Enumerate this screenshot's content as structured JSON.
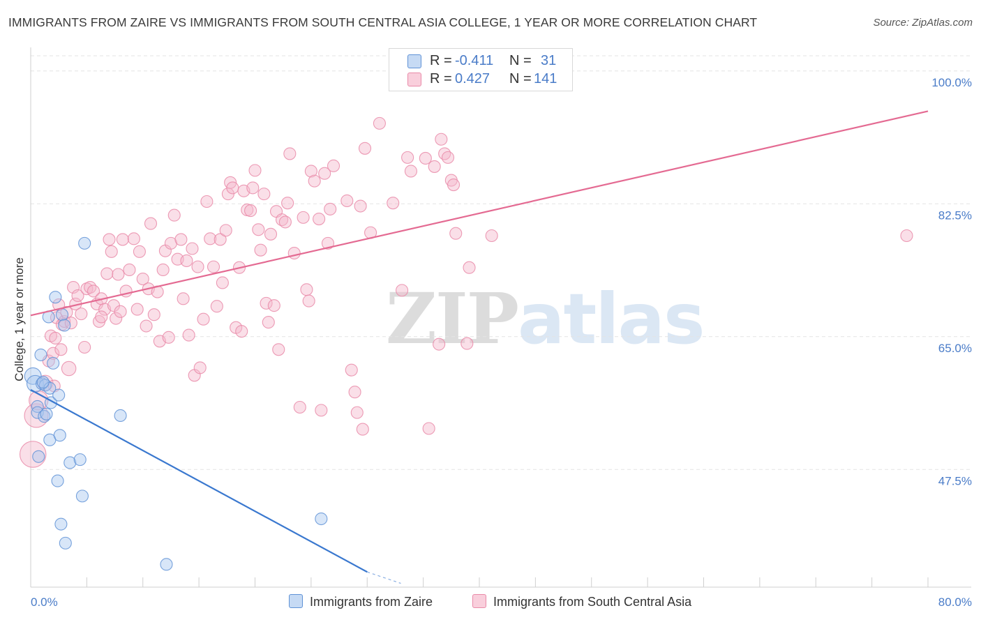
{
  "title": "IMMIGRANTS FROM ZAIRE VS IMMIGRANTS FROM SOUTH CENTRAL ASIA COLLEGE, 1 YEAR OR MORE CORRELATION CHART",
  "source": "Source: ZipAtlas.com",
  "watermark": {
    "zip": "ZIP",
    "atlas": "atlas"
  },
  "colors": {
    "blue_fill": "#a9c8ef",
    "blue_stroke": "#5f92d6",
    "blue_line": "#3a78cf",
    "pink_fill": "#f5b8cb",
    "pink_stroke": "#e98aa8",
    "pink_line": "#e46a92",
    "axis_text": "#4a7cc8",
    "grid": "#e3e3e3"
  },
  "legend": {
    "rows": [
      {
        "series": "Immigrants from Zaire",
        "r_label": "R =",
        "r_value": "-0.411",
        "n_label": "N =",
        "n_value": "31"
      },
      {
        "series": "Immigrants from South Central Asia",
        "r_label": "R =",
        "r_value": "0.427",
        "n_label": "N =",
        "n_value": "141"
      }
    ]
  },
  "bottom_legend": {
    "zaire": "Immigrants from Zaire",
    "sca": "Immigrants from South Central Asia"
  },
  "chart_data": {
    "type": "scatter",
    "title": "IMMIGRANTS FROM ZAIRE VS IMMIGRANTS FROM SOUTH CENTRAL ASIA COLLEGE, 1 YEAR OR MORE CORRELATION CHART",
    "xlabel": "",
    "ylabel": "College, 1 year or more",
    "xlim": [
      0,
      80
    ],
    "ylim": [
      32,
      102
    ],
    "x_tick_labels": [
      "0.0%",
      "80.0%"
    ],
    "y_ticks": [
      {
        "value": 100,
        "label": "100.0%"
      },
      {
        "value": 82.5,
        "label": "82.5%"
      },
      {
        "value": 65,
        "label": "65.0%"
      },
      {
        "value": 47.5,
        "label": "47.5%"
      }
    ],
    "grid": true,
    "legend_position": "top-center",
    "series": [
      {
        "name": "Immigrants from Zaire",
        "color": "blue",
        "r": -0.411,
        "n": 31,
        "trend": {
          "x": [
            0,
            30
          ],
          "y": [
            58.0,
            34.0
          ],
          "dashed_extension_to": [
            33,
            32.5
          ]
        },
        "points": [
          [
            0.2,
            59.8,
            1.4
          ],
          [
            0.4,
            58.8,
            1.4
          ],
          [
            0.6,
            55.8,
            1.0
          ],
          [
            0.6,
            55.0,
            1.0
          ],
          [
            0.7,
            49.2,
            1.0
          ],
          [
            0.9,
            62.6,
            1.0
          ],
          [
            1.0,
            58.8,
            1.0
          ],
          [
            1.2,
            54.5,
            1.0
          ],
          [
            1.3,
            58.6,
            1.0
          ],
          [
            1.4,
            54.8,
            1.0
          ],
          [
            1.6,
            67.6,
            1.0
          ],
          [
            1.7,
            51.4,
            1.0
          ],
          [
            1.7,
            58.2,
            1.0
          ],
          [
            1.8,
            56.3,
            1.0
          ],
          [
            2.0,
            61.5,
            1.0
          ],
          [
            2.2,
            70.2,
            1.0
          ],
          [
            2.4,
            46.0,
            1.0
          ],
          [
            2.5,
            57.3,
            1.0
          ],
          [
            2.6,
            52.0,
            1.0
          ],
          [
            2.7,
            40.3,
            1.0
          ],
          [
            2.8,
            67.9,
            1.0
          ],
          [
            3.0,
            66.5,
            1.0
          ],
          [
            3.1,
            37.8,
            1.0
          ],
          [
            3.5,
            48.4,
            1.0
          ],
          [
            4.4,
            48.8,
            1.0
          ],
          [
            4.6,
            44.0,
            1.0
          ],
          [
            4.8,
            77.3,
            1.0
          ],
          [
            8.0,
            54.6,
            1.0
          ],
          [
            12.1,
            35.0,
            1.0
          ],
          [
            25.9,
            41.0,
            1.0
          ],
          [
            1.1,
            59.0,
            1.0
          ]
        ]
      },
      {
        "name": "Immigrants from South Central Asia",
        "color": "pink",
        "r": 0.427,
        "n": 141,
        "trend": {
          "x": [
            0,
            80
          ],
          "y": [
            67.8,
            94.7
          ]
        },
        "points": [
          [
            0.2,
            49.5,
            2.2
          ],
          [
            0.5,
            54.6,
            2.0
          ],
          [
            0.7,
            56.6,
            1.6
          ],
          [
            1.3,
            58.9,
            1.3
          ],
          [
            1.6,
            61.8,
            1.0
          ],
          [
            1.8,
            65.1,
            1.0
          ],
          [
            2.0,
            62.8,
            1.0
          ],
          [
            2.1,
            58.5,
            1.0
          ],
          [
            2.2,
            64.8,
            1.0
          ],
          [
            2.3,
            67.5,
            1.0
          ],
          [
            2.5,
            69.2,
            1.0
          ],
          [
            2.7,
            63.3,
            1.0
          ],
          [
            2.8,
            66.6,
            1.0
          ],
          [
            3.0,
            67.0,
            1.0
          ],
          [
            3.2,
            68.2,
            1.0
          ],
          [
            3.4,
            60.8,
            1.2
          ],
          [
            3.6,
            66.8,
            1.0
          ],
          [
            3.8,
            71.5,
            1.0
          ],
          [
            4.0,
            69.3,
            1.0
          ],
          [
            4.2,
            70.4,
            1.0
          ],
          [
            4.5,
            68.0,
            1.0
          ],
          [
            4.8,
            63.6,
            1.0
          ],
          [
            5.0,
            71.3,
            1.0
          ],
          [
            5.3,
            71.5,
            1.0
          ],
          [
            5.6,
            71.0,
            1.0
          ],
          [
            5.9,
            69.3,
            1.0
          ],
          [
            6.1,
            67.0,
            1.0
          ],
          [
            6.3,
            70.0,
            1.0
          ],
          [
            6.6,
            68.6,
            1.0
          ],
          [
            6.8,
            73.3,
            1.0
          ],
          [
            7.0,
            77.8,
            1.0
          ],
          [
            7.2,
            76.2,
            1.0
          ],
          [
            7.4,
            69.1,
            1.0
          ],
          [
            7.6,
            67.4,
            1.0
          ],
          [
            7.8,
            73.2,
            1.0
          ],
          [
            8.0,
            68.3,
            1.0
          ],
          [
            8.2,
            77.8,
            1.0
          ],
          [
            8.5,
            71.0,
            1.0
          ],
          [
            8.8,
            73.8,
            1.0
          ],
          [
            9.2,
            77.9,
            1.0
          ],
          [
            9.5,
            68.6,
            1.0
          ],
          [
            9.7,
            76.2,
            1.0
          ],
          [
            10.0,
            72.6,
            1.0
          ],
          [
            10.3,
            66.4,
            1.0
          ],
          [
            10.5,
            71.3,
            1.0
          ],
          [
            10.7,
            79.9,
            1.0
          ],
          [
            11.0,
            67.9,
            1.0
          ],
          [
            11.3,
            70.9,
            1.0
          ],
          [
            11.5,
            64.4,
            1.0
          ],
          [
            11.8,
            73.8,
            1.0
          ],
          [
            12.0,
            76.3,
            1.0
          ],
          [
            12.3,
            64.9,
            1.0
          ],
          [
            12.5,
            77.3,
            1.0
          ],
          [
            12.8,
            81.0,
            1.0
          ],
          [
            13.1,
            75.2,
            1.0
          ],
          [
            13.4,
            77.8,
            1.0
          ],
          [
            13.6,
            70.0,
            1.0
          ],
          [
            13.9,
            75.0,
            1.0
          ],
          [
            14.1,
            65.2,
            1.0
          ],
          [
            14.4,
            76.6,
            1.0
          ],
          [
            14.6,
            59.9,
            1.0
          ],
          [
            14.9,
            74.2,
            1.0
          ],
          [
            15.1,
            60.9,
            1.0
          ],
          [
            15.4,
            67.3,
            1.0
          ],
          [
            15.7,
            82.8,
            1.0
          ],
          [
            16.0,
            77.9,
            1.0
          ],
          [
            16.3,
            74.2,
            1.0
          ],
          [
            16.6,
            69.0,
            1.0
          ],
          [
            16.9,
            77.8,
            1.0
          ],
          [
            17.1,
            72.1,
            1.0
          ],
          [
            17.4,
            79.0,
            1.0
          ],
          [
            17.6,
            83.8,
            1.0
          ],
          [
            17.8,
            85.3,
            1.0
          ],
          [
            18.0,
            84.6,
            1.0
          ],
          [
            18.3,
            66.2,
            1.0
          ],
          [
            18.6,
            74.1,
            1.0
          ],
          [
            18.8,
            65.7,
            1.0
          ],
          [
            19.0,
            84.2,
            1.0
          ],
          [
            19.3,
            81.7,
            1.0
          ],
          [
            19.6,
            81.6,
            1.0
          ],
          [
            19.8,
            84.6,
            1.0
          ],
          [
            20.0,
            86.9,
            1.0
          ],
          [
            20.3,
            79.1,
            1.0
          ],
          [
            20.5,
            76.4,
            1.0
          ],
          [
            20.8,
            83.8,
            1.0
          ],
          [
            21.0,
            69.4,
            1.0
          ],
          [
            21.2,
            66.9,
            1.0
          ],
          [
            21.4,
            78.5,
            1.0
          ],
          [
            21.7,
            69.1,
            1.0
          ],
          [
            21.9,
            81.5,
            1.0
          ],
          [
            22.1,
            63.3,
            1.0
          ],
          [
            22.4,
            80.4,
            1.0
          ],
          [
            22.7,
            80.1,
            1.0
          ],
          [
            22.9,
            82.6,
            1.0
          ],
          [
            23.1,
            89.1,
            1.0
          ],
          [
            23.5,
            76.0,
            1.0
          ],
          [
            24.0,
            55.7,
            1.0
          ],
          [
            24.3,
            80.7,
            1.0
          ],
          [
            24.6,
            71.2,
            1.0
          ],
          [
            24.8,
            69.7,
            1.0
          ],
          [
            25.0,
            86.8,
            1.0
          ],
          [
            25.3,
            85.5,
            1.0
          ],
          [
            25.7,
            80.5,
            1.0
          ],
          [
            25.9,
            55.3,
            1.0
          ],
          [
            26.2,
            86.5,
            1.0
          ],
          [
            26.5,
            77.3,
            1.0
          ],
          [
            26.7,
            81.8,
            1.0
          ],
          [
            27.0,
            87.5,
            1.0
          ],
          [
            28.2,
            82.9,
            1.0
          ],
          [
            28.6,
            60.6,
            1.0
          ],
          [
            28.9,
            57.7,
            1.0
          ],
          [
            29.1,
            55.0,
            1.0
          ],
          [
            29.4,
            82.2,
            1.0
          ],
          [
            29.6,
            52.8,
            1.0
          ],
          [
            29.8,
            89.8,
            1.0
          ],
          [
            30.3,
            78.7,
            1.0
          ],
          [
            31.1,
            93.1,
            1.0
          ],
          [
            32.3,
            82.6,
            1.0
          ],
          [
            33.1,
            71.1,
            1.0
          ],
          [
            33.6,
            88.6,
            1.0
          ],
          [
            33.9,
            86.8,
            1.0
          ],
          [
            35.2,
            88.5,
            1.0
          ],
          [
            35.5,
            52.9,
            1.0
          ],
          [
            36.0,
            87.4,
            1.0
          ],
          [
            36.4,
            64.0,
            1.0
          ],
          [
            36.6,
            91.0,
            1.0
          ],
          [
            36.9,
            89.1,
            1.0
          ],
          [
            37.2,
            88.6,
            1.0
          ],
          [
            37.5,
            85.6,
            1.0
          ],
          [
            37.7,
            85.0,
            1.0
          ],
          [
            37.9,
            78.6,
            1.0
          ],
          [
            38.9,
            64.1,
            1.0
          ],
          [
            39.1,
            74.1,
            1.0
          ],
          [
            41.1,
            78.3,
            1.0
          ],
          [
            78.1,
            78.3,
            1.0
          ],
          [
            6.3,
            67.6,
            1.0
          ]
        ]
      }
    ]
  }
}
